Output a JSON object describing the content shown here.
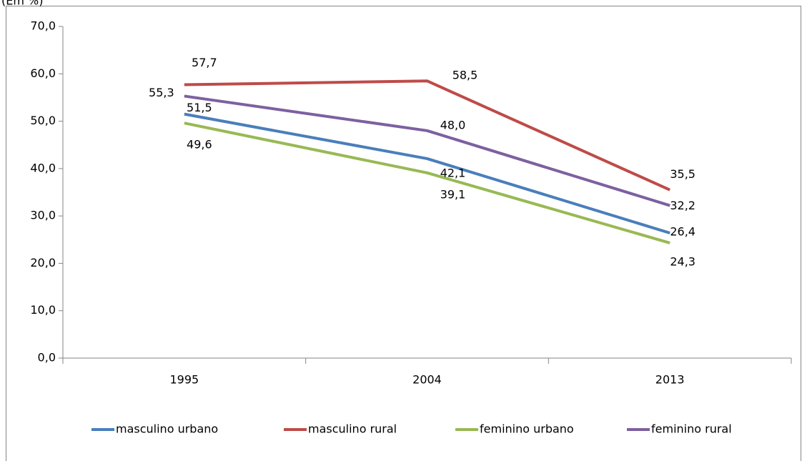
{
  "chart_data": {
    "type": "line",
    "y_label": "(Em %)",
    "categories": [
      "1995",
      "2004",
      "2013"
    ],
    "series": [
      {
        "name": "masculino urbano",
        "color": "#4a7ebb",
        "values": [
          51.5,
          42.1,
          26.4
        ],
        "value_labels": [
          "51,5",
          "42,1",
          "26,4"
        ]
      },
      {
        "name": "masculino rural",
        "color": "#be4b48",
        "values": [
          57.7,
          58.5,
          35.5
        ],
        "value_labels": [
          "57,7",
          "58,5",
          "35,5"
        ]
      },
      {
        "name": "feminino urbano",
        "color": "#98b954",
        "values": [
          49.6,
          39.1,
          24.3
        ],
        "value_labels": [
          "49,6",
          "39,1",
          "24,3"
        ]
      },
      {
        "name": "feminino rural",
        "color": "#7d60a0",
        "values": [
          55.3,
          48.0,
          32.2
        ],
        "value_labels": [
          "55,3",
          "48,0",
          "32,2"
        ]
      }
    ],
    "ylim": [
      0,
      70
    ],
    "yticks": [
      {
        "value": 0,
        "label": "0,0"
      },
      {
        "value": 10,
        "label": "10,0"
      },
      {
        "value": 20,
        "label": "20,0"
      },
      {
        "value": 30,
        "label": "30,0"
      },
      {
        "value": 40,
        "label": "40,0"
      },
      {
        "value": 50,
        "label": "50,0"
      },
      {
        "value": 60,
        "label": "60,0"
      },
      {
        "value": 70,
        "label": "70,0"
      }
    ],
    "legend": "bottom"
  }
}
